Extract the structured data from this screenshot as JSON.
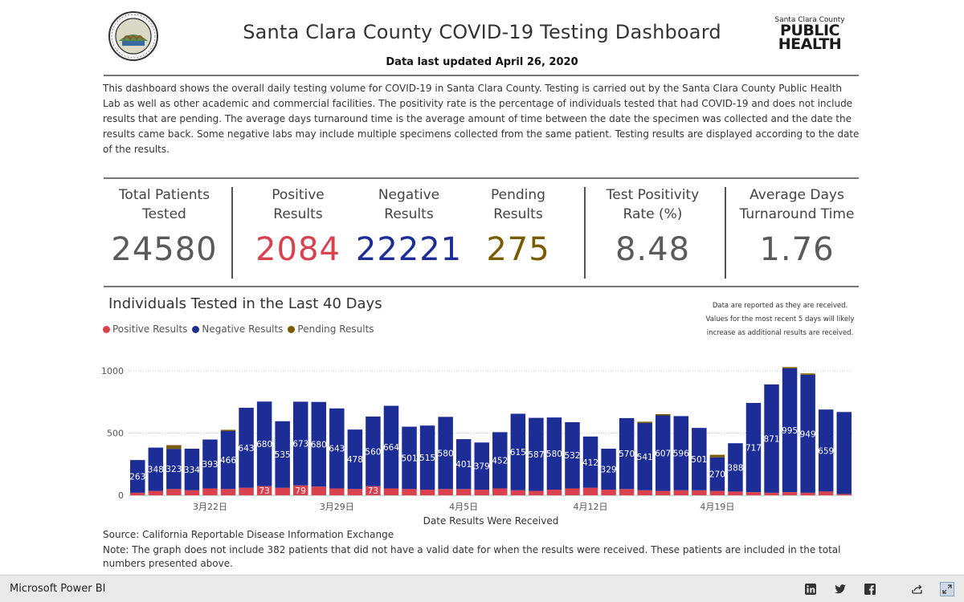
{
  "header": {
    "title": "Santa Clara County COVID-19 Testing Dashboard",
    "updated": "Data last updated April 26, 2020",
    "logo_small": "Santa Clara County",
    "logo_line1": "PUBLIC",
    "logo_line2": "HEALTH",
    "seal_icon": "county-seal-icon"
  },
  "description": "This dashboard shows the overall daily testing volume for COVID-19 in Santa Clara County. Testing is carried out by the Santa Clara County Public Health Lab as well as other academic and commercial facilities. The positivity rate is the percentage of individuals tested that had COVID-19 and does not include results that are pending. The average days turnaround time is the average amount of time between the date the specimen was collected and the date the results came back. Some negative labs may include multiple specimens collected from the same patient. Testing results are displayed according to the date of the results.",
  "kpis": {
    "total": {
      "label1": "Total Patients",
      "label2": "Tested",
      "value": "24580",
      "color": "#5a5a5a"
    },
    "positive": {
      "label1": "Positive",
      "label2": "Results",
      "value": "2084",
      "color": "#d9414f"
    },
    "negative": {
      "label1": "Negative",
      "label2": "Results",
      "value": "22221",
      "color": "#1c2d95"
    },
    "pending": {
      "label1": "Pending",
      "label2": "Results",
      "value": "275",
      "color": "#7a5c00"
    },
    "positivity": {
      "label1": "Test Positivity",
      "label2": "Rate (%)",
      "value": "8.48",
      "color": "#5a5a5a"
    },
    "turnaround": {
      "label1": "Average Days",
      "label2": "Turnaround Time",
      "value": "1.76",
      "color": "#5a5a5a"
    }
  },
  "chart_section": {
    "title": "Individuals Tested in the Last 40 Days",
    "note": "Data are reported as they are received. Values for the most recent 5 days will likely increase as additional results are received.",
    "legend": [
      {
        "label": "Positive Results",
        "color": "#d9414f"
      },
      {
        "label": "Negative Results",
        "color": "#1c2d95"
      },
      {
        "label": "Pending Results",
        "color": "#7a5c00"
      }
    ]
  },
  "chart_data": {
    "type": "bar",
    "stacked": true,
    "title": "Individuals Tested in the Last 40 Days",
    "xlabel": "Date Results Were Received",
    "ylabel": "",
    "ylim": [
      0,
      1000
    ],
    "yticks": [
      0,
      500,
      1000
    ],
    "xtick_labels": [
      {
        "index": 4,
        "label": "3月22日"
      },
      {
        "index": 11,
        "label": "3月29日"
      },
      {
        "index": 18,
        "label": "4月5日"
      },
      {
        "index": 25,
        "label": "4月12日"
      },
      {
        "index": 32,
        "label": "4月19日"
      }
    ],
    "categories": [
      "3/18",
      "3/19",
      "3/20",
      "3/21",
      "3/22",
      "3/23",
      "3/24",
      "3/25",
      "3/26",
      "3/27",
      "3/28",
      "3/29",
      "3/30",
      "3/31",
      "4/1",
      "4/2",
      "4/3",
      "4/4",
      "4/5",
      "4/6",
      "4/7",
      "4/8",
      "4/9",
      "4/10",
      "4/11",
      "4/12",
      "4/13",
      "4/14",
      "4/15",
      "4/16",
      "4/17",
      "4/18",
      "4/19",
      "4/20",
      "4/21",
      "4/22",
      "4/23",
      "4/24",
      "4/25",
      "4/26"
    ],
    "series": [
      {
        "name": "Positive Results",
        "color": "#d9414f",
        "values": [
          20,
          35,
          50,
          40,
          55,
          50,
          60,
          73,
          60,
          79,
          70,
          55,
          50,
          73,
          55,
          50,
          45,
          50,
          50,
          45,
          55,
          40,
          35,
          45,
          55,
          60,
          45,
          50,
          40,
          35,
          40,
          40,
          35,
          30,
          25,
          20,
          25,
          20,
          30,
          10
        ],
        "labels": [
          "",
          "",
          "",
          "",
          "",
          "",
          "",
          "73",
          "",
          "79",
          "",
          "",
          "",
          "73",
          "",
          "",
          "",
          "",
          "",
          "",
          "",
          "",
          "",
          "",
          "",
          "",
          "",
          "",
          "",
          "",
          "",
          "",
          "",
          "",
          "",
          "",
          "",
          "",
          "",
          ""
        ]
      },
      {
        "name": "Negative Results",
        "color": "#1c2d95",
        "values": [
          263,
          348,
          323,
          334,
          393,
          466,
          643,
          680,
          535,
          673,
          680,
          643,
          478,
          560,
          664,
          501,
          515,
          580,
          401,
          379,
          452,
          615,
          587,
          580,
          532,
          412,
          329,
          570,
          541,
          607,
          596,
          501,
          270,
          388,
          717,
          871,
          995,
          949,
          659,
          659
        ],
        "labels": [
          "263",
          "348",
          "323",
          "334",
          "393",
          "466",
          "643",
          "680",
          "535",
          "673",
          "680",
          "643",
          "478",
          "560",
          "664",
          "501",
          "515",
          "580",
          "401",
          "379",
          "452",
          "615",
          "587",
          "580",
          "532",
          "412",
          "329",
          "570",
          "541",
          "607",
          "596",
          "501",
          "270",
          "388",
          "717",
          "871",
          "995",
          "949",
          "659",
          ""
        ]
      },
      {
        "name": "Pending Results",
        "color": "#7a5c00",
        "values": [
          0,
          0,
          30,
          0,
          0,
          10,
          0,
          0,
          0,
          0,
          0,
          0,
          0,
          0,
          0,
          0,
          0,
          0,
          0,
          0,
          0,
          0,
          0,
          0,
          0,
          0,
          0,
          0,
          10,
          10,
          0,
          0,
          20,
          0,
          0,
          0,
          10,
          10,
          0,
          0
        ],
        "labels": []
      }
    ]
  },
  "source": "Source: California Reportable Disease Information Exchange",
  "footnote": "Note: The graph does not include 382 patients that did not have a valid date for when the results were received. These patients are included in the total numbers presented above.",
  "footer": {
    "brand": "Microsoft Power BI",
    "icons": [
      "linkedin-icon",
      "twitter-icon",
      "facebook-icon",
      "share-icon",
      "fullscreen-icon"
    ]
  }
}
